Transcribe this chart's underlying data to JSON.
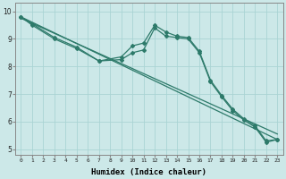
{
  "xlabel": "Humidex (Indice chaleur)",
  "bg_color": "#cce8e8",
  "grid_color": "#aad4d4",
  "line_color": "#2d7a6a",
  "xlim": [
    -0.5,
    23.5
  ],
  "ylim": [
    4.8,
    10.3
  ],
  "series": [
    {
      "x": [
        0,
        23
      ],
      "y": [
        9.8,
        5.35
      ],
      "marker": false,
      "lw": 0.9
    },
    {
      "x": [
        0,
        23
      ],
      "y": [
        9.75,
        5.55
      ],
      "marker": false,
      "lw": 0.9
    },
    {
      "x": [
        0,
        1,
        3,
        5,
        7,
        9,
        10,
        11,
        12,
        13,
        14,
        15,
        16,
        17,
        18,
        19,
        20,
        21,
        22,
        23
      ],
      "y": [
        9.8,
        9.55,
        9.05,
        8.7,
        8.2,
        8.35,
        8.75,
        8.85,
        9.5,
        9.25,
        9.1,
        9.05,
        8.55,
        7.5,
        6.95,
        6.45,
        6.1,
        5.85,
        5.3,
        5.35
      ],
      "marker": true,
      "lw": 0.9
    },
    {
      "x": [
        0,
        1,
        3,
        5,
        7,
        9,
        10,
        11,
        12,
        13,
        14,
        15,
        16,
        17,
        18,
        19,
        20,
        21,
        22,
        23
      ],
      "y": [
        9.8,
        9.5,
        9.0,
        8.65,
        8.2,
        8.25,
        8.5,
        8.6,
        9.4,
        9.1,
        9.05,
        9.0,
        8.5,
        7.45,
        6.9,
        6.4,
        6.05,
        5.8,
        5.25,
        5.35
      ],
      "marker": true,
      "lw": 0.9
    }
  ]
}
